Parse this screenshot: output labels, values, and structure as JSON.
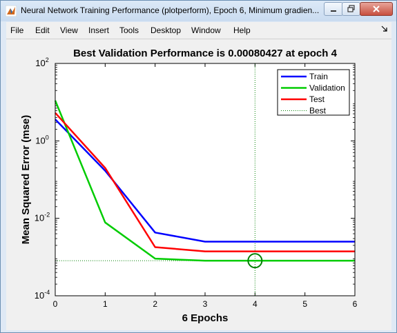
{
  "window": {
    "title": "Neural Network Training Performance (plotperform), Epoch 6, Minimum gradien...",
    "buttons": [
      "minimize",
      "restore",
      "close"
    ]
  },
  "menu": [
    "File",
    "Edit",
    "View",
    "Insert",
    "Tools",
    "Desktop",
    "Window",
    "Help"
  ],
  "chart_data": {
    "type": "line",
    "title": "Best Validation Performance is 0.00080427 at epoch 4",
    "xlabel": "6 Epochs",
    "ylabel": "Mean Squared Error  (mse)",
    "xlim": [
      0,
      6
    ],
    "ylim": [
      0.0001,
      100
    ],
    "yscale": "log",
    "xticks": [
      "0",
      "1",
      "2",
      "3",
      "4",
      "5",
      "6"
    ],
    "yticks": [
      {
        "base": "10",
        "exp": "2",
        "value": 100
      },
      {
        "base": "10",
        "exp": "0",
        "value": 1
      },
      {
        "base": "10",
        "exp": "-2",
        "value": 0.01
      },
      {
        "base": "10",
        "exp": "-4",
        "value": 0.0001
      }
    ],
    "x": [
      0,
      1,
      2,
      3,
      4,
      5,
      6
    ],
    "series": [
      {
        "name": "Train",
        "color": "#0000ff",
        "values": [
          3.6,
          0.17,
          0.0043,
          0.0025,
          0.0025,
          0.0025,
          0.0025
        ]
      },
      {
        "name": "Validation",
        "color": "#00cc00",
        "values": [
          11,
          0.0078,
          0.00091,
          0.00080427,
          0.00080427,
          0.00080427,
          0.00080427
        ]
      },
      {
        "name": "Test",
        "color": "#ff0000",
        "values": [
          5.3,
          0.2,
          0.0018,
          0.0014,
          0.0014,
          0.0014,
          0.0014
        ]
      }
    ],
    "best": {
      "name": "Best",
      "epoch": 4,
      "value": 0.00080427,
      "color": "#008000"
    },
    "legend_position": "top-right"
  }
}
